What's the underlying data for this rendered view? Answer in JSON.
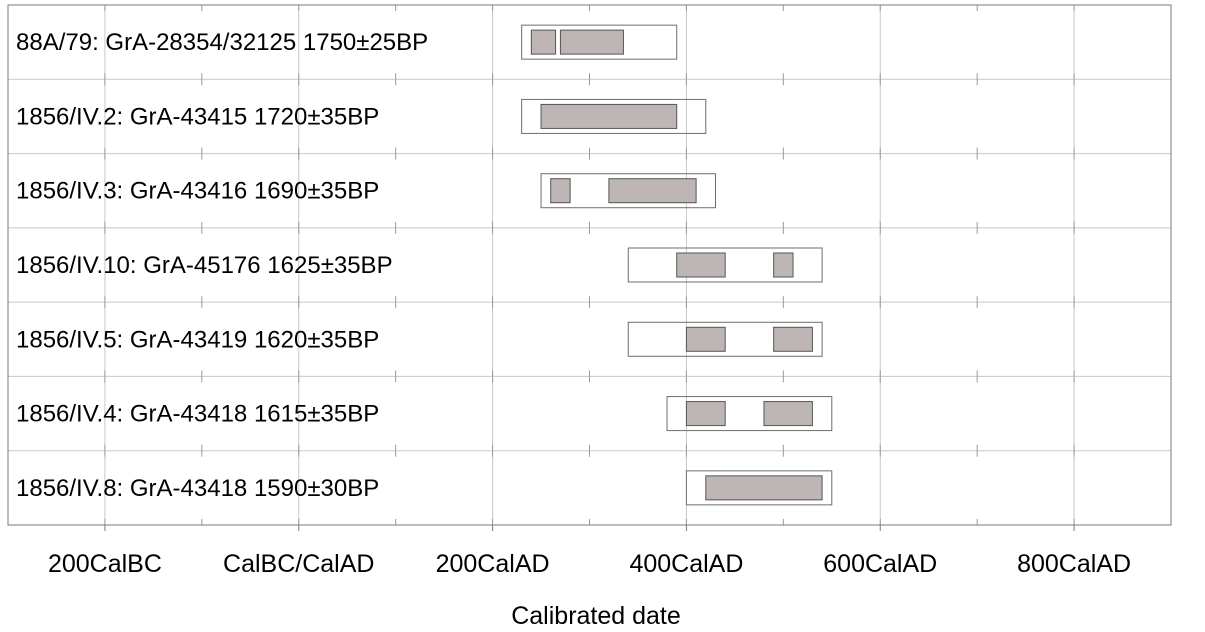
{
  "chart_data": {
    "type": "range",
    "xlabel": "Calibrated date",
    "xlim": [
      -300,
      900
    ],
    "grid": true,
    "ticks": [
      {
        "value": -200,
        "label": "200CalBC"
      },
      {
        "value": 0,
        "label": "CalBC/CalAD"
      },
      {
        "value": 200,
        "label": "200CalAD"
      },
      {
        "value": 400,
        "label": "400CalAD"
      },
      {
        "value": 600,
        "label": "600CalAD"
      },
      {
        "value": 800,
        "label": "800CalAD"
      }
    ],
    "minor_ticks": [
      -200,
      -100,
      0,
      100,
      200,
      300,
      400,
      500,
      600,
      700,
      800
    ],
    "colors": {
      "range_fill": "#bdb6b5",
      "outline": "#6e6e6e",
      "grid": "#c8c8c8"
    },
    "samples": [
      {
        "label": "88A/79: GrA-28354/32125  1750±25BP",
        "outer": [
          230,
          390
        ],
        "inner": [
          [
            240,
            265
          ],
          [
            270,
            335
          ]
        ]
      },
      {
        "label": "1856/IV.2: GrA-43415  1720±35BP",
        "outer": [
          230,
          420
        ],
        "inner": [
          [
            250,
            390
          ]
        ]
      },
      {
        "label": "1856/IV.3: GrA-43416  1690±35BP",
        "outer": [
          250,
          430
        ],
        "inner": [
          [
            260,
            280
          ],
          [
            320,
            410
          ]
        ]
      },
      {
        "label": "1856/IV.10: GrA-45176  1625±35BP",
        "outer": [
          340,
          540
        ],
        "inner": [
          [
            390,
            440
          ],
          [
            490,
            510
          ]
        ]
      },
      {
        "label": "1856/IV.5: GrA-43419  1620±35BP",
        "outer": [
          340,
          540
        ],
        "inner": [
          [
            400,
            440
          ],
          [
            490,
            530
          ]
        ]
      },
      {
        "label": "1856/IV.4: GrA-43418  1615±35BP",
        "outer": [
          380,
          550
        ],
        "inner": [
          [
            400,
            440
          ],
          [
            480,
            530
          ]
        ]
      },
      {
        "label": "1856/IV.8: GrA-43418  1590±30BP",
        "outer": [
          400,
          550
        ],
        "inner": [
          [
            420,
            540
          ]
        ]
      }
    ]
  }
}
